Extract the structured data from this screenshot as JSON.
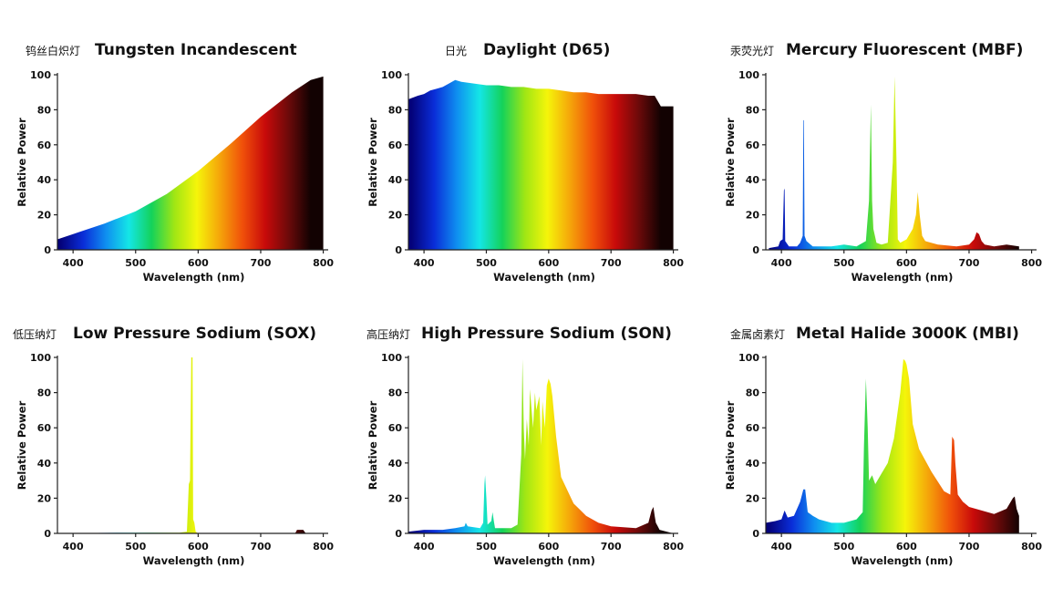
{
  "palette": {
    "spectrum": [
      "#04027a",
      "#0a2dd8",
      "#0f8ff0",
      "#14e6e6",
      "#14d25a",
      "#a0e614",
      "#f5f50a",
      "#f5a50a",
      "#f0500a",
      "#c80a0a",
      "#6e0a0a",
      "#120202"
    ]
  },
  "chart_data": [
    {
      "type": "area",
      "title_cn": "钨丝白炽灯",
      "title": "Tungsten Incandescent",
      "xlabel": "Wavelength (nm)",
      "ylabel": "Relative Power",
      "xlim": [
        375,
        805
      ],
      "ylim": [
        0,
        100
      ],
      "xticks": [
        400,
        500,
        600,
        700,
        800
      ],
      "yticks": [
        0,
        20,
        40,
        60,
        80,
        100
      ],
      "x": [
        375,
        400,
        450,
        500,
        550,
        600,
        650,
        700,
        750,
        780,
        800
      ],
      "y": [
        6,
        9,
        15,
        22,
        32,
        45,
        60,
        76,
        90,
        97,
        99
      ]
    },
    {
      "type": "area",
      "title_cn": "日光",
      "title": "Daylight (D65)",
      "xlabel": "Wavelength (nm)",
      "ylabel": "Relative Power",
      "xlim": [
        375,
        805
      ],
      "ylim": [
        0,
        100
      ],
      "xticks": [
        400,
        500,
        600,
        700,
        800
      ],
      "yticks": [
        0,
        20,
        40,
        60,
        80,
        100
      ],
      "x": [
        375,
        390,
        400,
        410,
        420,
        430,
        440,
        450,
        460,
        480,
        500,
        520,
        540,
        560,
        580,
        600,
        620,
        640,
        660,
        680,
        700,
        720,
        740,
        760,
        770,
        780,
        800
      ],
      "y": [
        86,
        88,
        89,
        91,
        92,
        93,
        95,
        97,
        96,
        95,
        94,
        94,
        93,
        93,
        92,
        92,
        91,
        90,
        90,
        89,
        89,
        89,
        89,
        88,
        88,
        82,
        82
      ]
    },
    {
      "type": "area",
      "title_cn": "汞荧光灯",
      "title": "Mercury Fluorescent (MBF)",
      "xlabel": "Wavelength (nm)",
      "ylabel": "Relative Power",
      "xlim": [
        375,
        805
      ],
      "ylim": [
        0,
        100
      ],
      "xticks": [
        400,
        500,
        600,
        700,
        800
      ],
      "yticks": [
        0,
        20,
        40,
        60,
        80,
        100
      ],
      "x": [
        380,
        395,
        398,
        402,
        404,
        405,
        406,
        408,
        412,
        425,
        430,
        434,
        435,
        436,
        437,
        440,
        450,
        480,
        500,
        520,
        535,
        540,
        543,
        545,
        547,
        552,
        560,
        570,
        578,
        581,
        584,
        586,
        590,
        595,
        600,
        610,
        615,
        618,
        621,
        625,
        630,
        650,
        680,
        700,
        708,
        712,
        716,
        720,
        725,
        740,
        760,
        780
      ],
      "y": [
        1,
        2,
        5,
        6,
        34,
        35,
        5,
        4,
        2,
        2,
        4,
        8,
        74,
        74,
        8,
        5,
        2,
        2,
        3,
        2,
        5,
        28,
        83,
        28,
        12,
        4,
        3,
        4,
        50,
        99,
        50,
        6,
        4,
        5,
        6,
        12,
        20,
        33,
        20,
        8,
        5,
        3,
        2,
        3,
        6,
        10,
        9,
        5,
        3,
        2,
        3,
        2
      ]
    },
    {
      "type": "area",
      "title_cn": "低压纳灯",
      "title": "Low Pressure Sodium (SOX)",
      "xlabel": "Wavelength (nm)",
      "ylabel": "Relative Power",
      "xlim": [
        375,
        805
      ],
      "ylim": [
        0,
        100
      ],
      "xticks": [
        400,
        500,
        600,
        700,
        800
      ],
      "yticks": [
        0,
        20,
        40,
        60,
        80,
        100
      ],
      "x": [
        375,
        480,
        570,
        582,
        585,
        587,
        589,
        590,
        591,
        592,
        594,
        596,
        600,
        680,
        755,
        758,
        768,
        772,
        800
      ],
      "y": [
        0,
        0.4,
        0.4,
        1,
        28,
        30,
        100,
        100,
        100,
        8,
        6,
        1,
        0,
        0,
        0,
        2,
        2,
        0,
        0
      ]
    },
    {
      "type": "area",
      "title_cn": "高压纳灯",
      "title": "High Pressure Sodium (SON)",
      "xlabel": "Wavelength (nm)",
      "ylabel": "Relative Power",
      "xlim": [
        375,
        805
      ],
      "ylim": [
        0,
        100
      ],
      "xticks": [
        400,
        500,
        600,
        700,
        800
      ],
      "yticks": [
        0,
        20,
        40,
        60,
        80,
        100
      ],
      "x": [
        375,
        400,
        430,
        450,
        465,
        467,
        470,
        490,
        495,
        497,
        498,
        500,
        502,
        508,
        510,
        512,
        514,
        540,
        550,
        556,
        558,
        560,
        562,
        565,
        568,
        570,
        575,
        578,
        580,
        585,
        588,
        590,
        594,
        597,
        600,
        603,
        606,
        612,
        620,
        640,
        660,
        680,
        700,
        740,
        760,
        765,
        768,
        770,
        772,
        775,
        778,
        800
      ],
      "y": [
        1,
        2,
        2,
        3,
        4,
        6,
        4,
        3,
        6,
        28,
        33,
        20,
        5,
        7,
        12,
        7,
        3,
        3,
        5,
        45,
        99,
        60,
        42,
        65,
        50,
        82,
        60,
        80,
        70,
        78,
        50,
        75,
        60,
        84,
        88,
        85,
        78,
        55,
        32,
        17,
        10,
        6,
        4,
        3,
        6,
        13,
        15,
        10,
        6,
        4,
        2,
        0
      ]
    },
    {
      "type": "area",
      "title_cn": "金属卤素灯",
      "title": "Metal Halide 3000K (MBI)",
      "xlabel": "Wavelength (nm)",
      "ylabel": "Relative Power",
      "xlim": [
        375,
        805
      ],
      "ylim": [
        0,
        100
      ],
      "xticks": [
        400,
        500,
        600,
        700,
        800
      ],
      "yticks": [
        0,
        20,
        40,
        60,
        80,
        100
      ],
      "x": [
        375,
        390,
        400,
        405,
        410,
        420,
        430,
        435,
        438,
        442,
        450,
        455,
        460,
        480,
        500,
        520,
        530,
        532,
        535,
        538,
        540,
        545,
        550,
        560,
        570,
        580,
        590,
        595,
        598,
        600,
        604,
        610,
        620,
        640,
        660,
        670,
        673,
        676,
        678,
        682,
        690,
        700,
        720,
        740,
        760,
        770,
        773,
        776,
        780
      ],
      "y": [
        6,
        7,
        8,
        13,
        9,
        10,
        18,
        25,
        25,
        12,
        10,
        9,
        8,
        6,
        6,
        8,
        12,
        50,
        88,
        60,
        30,
        33,
        28,
        34,
        40,
        54,
        80,
        99,
        98,
        96,
        88,
        62,
        48,
        35,
        24,
        22,
        55,
        53,
        40,
        22,
        18,
        15,
        13,
        11,
        14,
        20,
        21,
        14,
        10
      ]
    }
  ]
}
